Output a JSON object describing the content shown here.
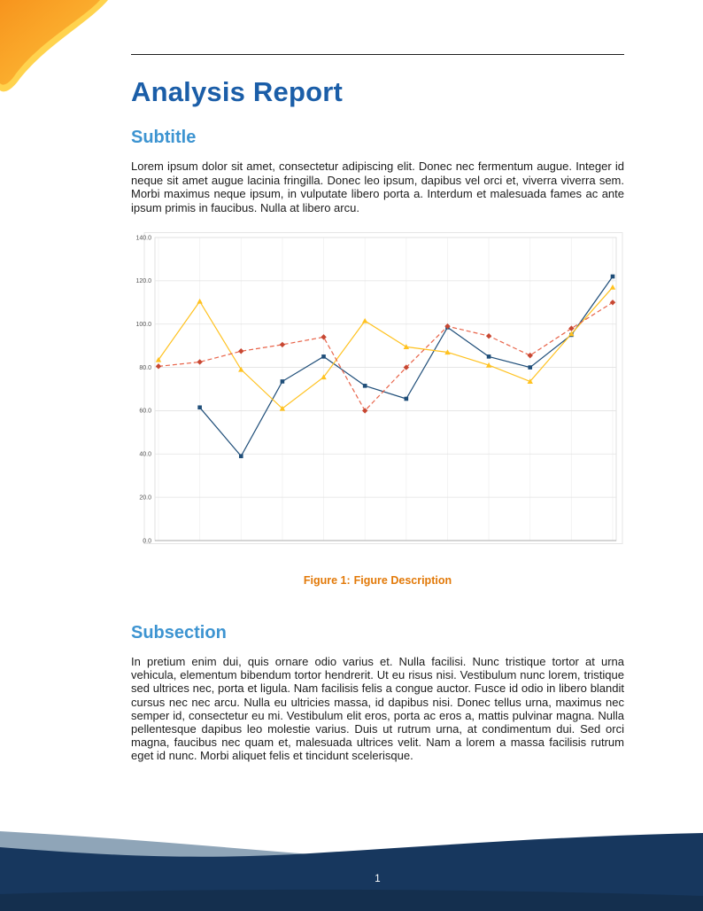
{
  "header": {
    "title": "Analysis Report"
  },
  "sections": [
    {
      "heading": "Subtitle",
      "body": "Lorem ipsum dolor sit amet, consectetur adipiscing elit. Donec nec fermentum augue. Integer id neque sit amet augue lacinia fringilla. Donec leo ipsum, dapibus vel orci et, viverra viverra sem. Morbi maximus neque ipsum, in vulputate libero porta a. Interdum et malesuada fames ac ante ipsum primis in faucibus. Nulla at libero arcu."
    },
    {
      "heading": "Subsection",
      "body": "In pretium enim dui, quis ornare odio varius et. Nulla facilisi. Nunc tristique tortor at urna vehicula, elementum bibendum tortor hendrerit. Ut eu risus nisi. Vestibulum nunc lorem, tristique sed ultrices nec, porta et ligula. Nam facilisis felis a congue auctor. Fusce id odio in libero blandit cursus nec nec arcu. Nulla eu ultricies massa, id dapibus nisi. Donec tellus urna, maximus nec semper id, consectetur eu mi. Vestibulum elit eros, porta ac eros a, mattis pulvinar magna. Nulla pellentesque dapibus leo molestie varius. Duis ut rutrum urna, at condimentum dui. Sed orci magna, faucibus nec quam et, malesuada ultrices velit. Nam a lorem a massa facilisis rutrum eget id nunc. Morbi aliquet felis et tincidunt scelerisque."
    }
  ],
  "figure": {
    "caption_label": "Figure 1:",
    "caption_text": "Figure Description"
  },
  "chart_data": {
    "type": "line",
    "title": "",
    "xlabel": "",
    "ylabel": "",
    "x": [
      1,
      2,
      3,
      4,
      5,
      6,
      7,
      8,
      9,
      10,
      11,
      12
    ],
    "ylim": [
      0,
      140
    ],
    "yticks": [
      "0.0",
      "20.0",
      "40.0",
      "60.0",
      "80.0",
      "100.0",
      "120.0",
      "140.0"
    ],
    "grid": true,
    "legend": false,
    "series": [
      {
        "name": "blue-solid-squares",
        "line_color": "#1F4E79",
        "marker": "square",
        "marker_color": "#1F4E79",
        "dash": "solid",
        "values": [
          null,
          61.5,
          39,
          73.5,
          85,
          71.5,
          65.5,
          98.5,
          85,
          80,
          95,
          122
        ]
      },
      {
        "name": "yellow-solid-triangles",
        "line_color": "#FFC220",
        "marker": "triangle",
        "marker_color": "#FFC220",
        "dash": "solid",
        "values": [
          83.5,
          110.5,
          79,
          61,
          75.5,
          101.5,
          89.5,
          87,
          81,
          73.5,
          95.5,
          117
        ]
      },
      {
        "name": "red-dashed-diamonds",
        "line_color": "#E8644A",
        "marker": "diamond",
        "marker_color": "#C74732",
        "dash": "dashed",
        "values": [
          80.5,
          82.5,
          87.5,
          90.5,
          94,
          60,
          80,
          99,
          94.5,
          85.5,
          98,
          110
        ]
      }
    ]
  },
  "footer": {
    "page_number": "1"
  },
  "colors": {
    "title_blue": "#1B5EA8",
    "heading_blue": "#3D94D1",
    "caption_orange": "#E27908",
    "footer_navy": "#17375E",
    "footer_navy_dark": "#142F4E",
    "footer_steel": "#8FA5B8",
    "corner_orange": "#F7941D",
    "corner_yellow": "#FFD34E"
  }
}
